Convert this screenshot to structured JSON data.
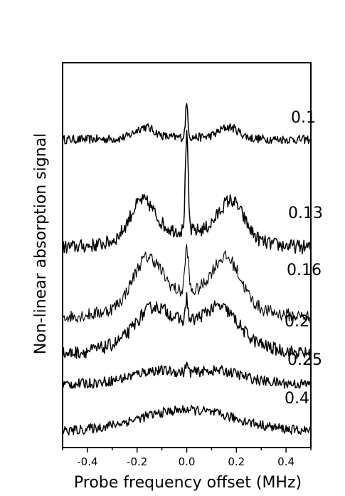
{
  "chart_data": {
    "type": "line",
    "xlabel": "Probe frequency offset (MHz)",
    "ylabel": "Non-linear absorption signal",
    "xlim": [
      -0.5,
      0.5
    ],
    "x_ticks": [
      "-0.4",
      "-0.2",
      "0.0",
      "0.2",
      "0.4"
    ],
    "x_tick_values": [
      -0.4,
      -0.2,
      0.0,
      0.2,
      0.4
    ],
    "y_ticks_shown": false,
    "grid": false,
    "line_color": "#000000",
    "series": [
      {
        "name": "0.1",
        "baseline": 0.0,
        "side_amp": 0.45,
        "side_pos": 0.17,
        "side_width": 0.055,
        "broad_amp": 0.1,
        "peak_amp": 1.35,
        "peak_width": 0.007,
        "noise": 0.18
      },
      {
        "name": "0.13",
        "baseline": 0.0,
        "side_amp": 1.15,
        "side_pos": 0.18,
        "side_width": 0.07,
        "broad_amp": 0.55,
        "peak_amp": 3.0,
        "peak_width": 0.008,
        "noise": 0.22
      },
      {
        "name": "0.16",
        "baseline": 0.0,
        "side_amp": 1.45,
        "side_pos": 0.16,
        "side_width": 0.08,
        "broad_amp": 0.8,
        "peak_amp": 1.5,
        "peak_width": 0.01,
        "noise": 0.22
      },
      {
        "name": "0.2",
        "baseline": 0.0,
        "side_amp": 0.9,
        "side_pos": 0.14,
        "side_width": 0.09,
        "broad_amp": 1.1,
        "peak_amp": 0.9,
        "peak_width": 0.006,
        "noise": 0.24
      },
      {
        "name": "0.25",
        "baseline": 0.0,
        "side_amp": 0.2,
        "side_pos": 0.15,
        "side_width": 0.1,
        "broad_amp": 0.45,
        "peak_amp": 0.35,
        "peak_width": 0.006,
        "noise": 0.2
      },
      {
        "name": "0.4",
        "baseline": 0.0,
        "side_amp": 0.0,
        "side_pos": 0.15,
        "side_width": 0.1,
        "broad_amp": 0.9,
        "peak_amp": 0.05,
        "peak_width": 0.006,
        "noise": 0.2
      }
    ]
  }
}
